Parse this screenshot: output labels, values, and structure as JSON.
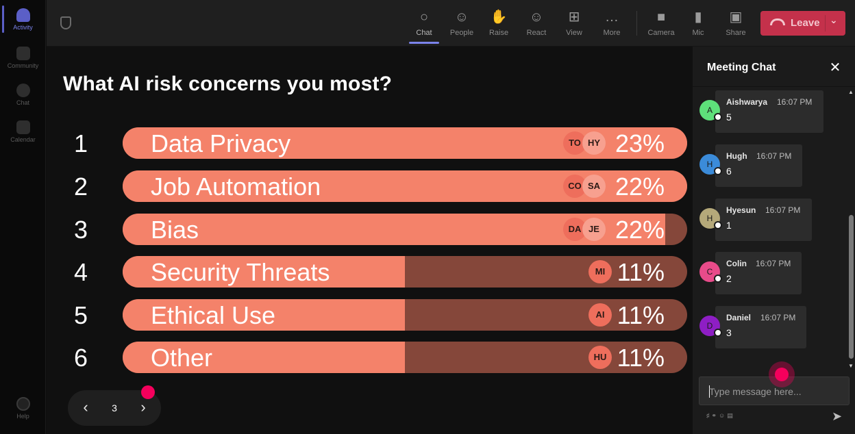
{
  "rail": {
    "items": [
      {
        "label": "Activity",
        "icon": "bell-icon",
        "active": true
      },
      {
        "label": "Community",
        "icon": "community-icon"
      },
      {
        "label": "Chat",
        "icon": "chat-icon"
      },
      {
        "label": "Calendar",
        "icon": "calendar-icon"
      }
    ],
    "help": {
      "label": "Help",
      "icon": "help-icon"
    }
  },
  "toolbar": {
    "tools": [
      {
        "label": "Chat",
        "icon": "chat-icon",
        "glyph": "○"
      },
      {
        "label": "People",
        "icon": "people-icon",
        "glyph": "☺"
      },
      {
        "label": "Raise",
        "icon": "hand-icon",
        "glyph": "✋"
      },
      {
        "label": "React",
        "icon": "smiley-icon",
        "glyph": "☺"
      },
      {
        "label": "View",
        "icon": "grid-icon",
        "glyph": "⊞"
      },
      {
        "label": "More",
        "icon": "more-icon",
        "glyph": "…"
      },
      {
        "label": "Camera",
        "icon": "camera-off-icon",
        "glyph": "■"
      },
      {
        "label": "Mic",
        "icon": "mic-icon",
        "glyph": "▮"
      },
      {
        "label": "Share",
        "icon": "share-icon",
        "glyph": "▣"
      }
    ],
    "leave_label": "Leave",
    "leave_color": "#c4314b"
  },
  "poll": {
    "question": "What AI risk concerns you most?",
    "bar_color": "#f4826a",
    "track_color": "#85473a",
    "options": [
      {
        "rank": "1",
        "label": "Data Privacy",
        "percent": "23%",
        "fraction": 1.0,
        "avatars": [
          "TO",
          "HY"
        ]
      },
      {
        "rank": "2",
        "label": "Job Automation",
        "percent": "22%",
        "fraction": 1.0,
        "avatars": [
          "CO",
          "SA"
        ]
      },
      {
        "rank": "3",
        "label": "Bias",
        "percent": "22%",
        "fraction": 0.961,
        "avatars": [
          "DA",
          "JE"
        ]
      },
      {
        "rank": "4",
        "label": "Security Threats",
        "percent": "11%",
        "fraction": 0.5,
        "avatars": [
          "MI"
        ]
      },
      {
        "rank": "5",
        "label": "Ethical Use",
        "percent": "11%",
        "fraction": 0.5,
        "avatars": [
          "AI"
        ]
      },
      {
        "rank": "6",
        "label": "Other",
        "percent": "11%",
        "fraction": 0.5,
        "avatars": [
          "HU"
        ]
      }
    ]
  },
  "pager": {
    "prev": "‹",
    "page": "3",
    "next": "›"
  },
  "chat": {
    "title": "Meeting Chat",
    "close": "✕",
    "messages": [
      {
        "initial": "A",
        "name": "Aishwarya",
        "time": "16:07 PM",
        "text": "5",
        "color": "#5ee07a"
      },
      {
        "initial": "H",
        "name": "Hugh",
        "time": "16:07 PM",
        "text": "6",
        "color": "#3b8bd9"
      },
      {
        "initial": "H",
        "name": "Hyesun",
        "time": "16:07 PM",
        "text": "1",
        "color": "#b5a97a"
      },
      {
        "initial": "C",
        "name": "Colin",
        "time": "16:07 PM",
        "text": "2",
        "color": "#e84b8a"
      },
      {
        "initial": "D",
        "name": "Daniel",
        "time": "16:07 PM",
        "text": "3",
        "color": "#8e1ec4"
      }
    ],
    "compose_placeholder": "Type message here...",
    "send": "➤"
  }
}
